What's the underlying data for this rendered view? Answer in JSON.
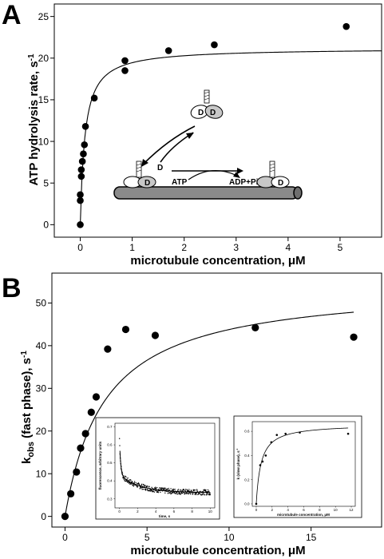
{
  "panels": {
    "A": "A",
    "B": "B"
  },
  "chart_data": [
    {
      "type": "scatter",
      "panel": "A",
      "xlabel": "microtubule concentration, μM",
      "ylabel": "ATP hydrolysis rate, s",
      "ylabel_sup": "-1",
      "xlim": [
        -0.5,
        5.8
      ],
      "ylim": [
        -1.5,
        26.5
      ],
      "xticks": [
        0,
        1,
        2,
        3,
        4,
        5
      ],
      "yticks": [
        0,
        5,
        10,
        15,
        20,
        25
      ],
      "points": [
        {
          "x": 0.0,
          "y": 0.0
        },
        {
          "x": 0.0,
          "y": 2.9
        },
        {
          "x": 0.0,
          "y": 3.6
        },
        {
          "x": 0.02,
          "y": 5.8
        },
        {
          "x": 0.02,
          "y": 6.6
        },
        {
          "x": 0.04,
          "y": 7.6
        },
        {
          "x": 0.06,
          "y": 8.5
        },
        {
          "x": 0.08,
          "y": 9.6
        },
        {
          "x": 0.1,
          "y": 11.8
        },
        {
          "x": 0.27,
          "y": 15.2
        },
        {
          "x": 0.86,
          "y": 18.5
        },
        {
          "x": 0.86,
          "y": 19.7
        },
        {
          "x": 1.7,
          "y": 20.9
        },
        {
          "x": 2.58,
          "y": 21.6
        },
        {
          "x": 5.12,
          "y": 23.8
        }
      ],
      "fit": {
        "model": "hyperbola",
        "vmax": 21.2,
        "k": 0.09
      },
      "diagram_labels": {
        "d": "D",
        "atp": "ATP",
        "products": "ADP+Pi"
      }
    },
    {
      "type": "scatter",
      "panel": "B",
      "xlabel": "microtubule concentration, μM",
      "ylabel_main": "k",
      "ylabel_sub": "obs",
      "ylabel_rest": " (fast phase), s",
      "ylabel_sup": "-1",
      "xlim": [
        -0.8,
        19.3
      ],
      "ylim": [
        -2.5,
        57
      ],
      "xticks": [
        0,
        5,
        10,
        15
      ],
      "yticks": [
        0,
        10,
        20,
        30,
        40,
        50
      ],
      "points": [
        {
          "x": 0.0,
          "y": 0.0
        },
        {
          "x": 0.35,
          "y": 5.3
        },
        {
          "x": 0.7,
          "y": 10.4
        },
        {
          "x": 0.95,
          "y": 16.0
        },
        {
          "x": 1.25,
          "y": 19.4
        },
        {
          "x": 1.6,
          "y": 24.4
        },
        {
          "x": 1.9,
          "y": 28.0
        },
        {
          "x": 2.6,
          "y": 39.2
        },
        {
          "x": 3.7,
          "y": 43.8
        },
        {
          "x": 5.5,
          "y": 42.4
        },
        {
          "x": 11.6,
          "y": 44.2
        },
        {
          "x": 17.6,
          "y": 42.0
        }
      ],
      "fit": {
        "model": "hyperbola",
        "vmax": 54.5,
        "k": 2.45
      },
      "insets": [
        {
          "type": "line",
          "xlabel": "time, s",
          "ylabel": "fluorescence, arbitrary units",
          "xlim": [
            -0.5,
            10.5
          ],
          "ylim": [
            0.25,
            0.72
          ],
          "xticks": [
            0,
            2,
            4,
            6,
            8,
            10
          ],
          "yticks": [
            0.3,
            0.4,
            0.5,
            0.6,
            0.7
          ],
          "curve": {
            "model": "double-exponential",
            "a1": 0.2,
            "k1": 8,
            "a2": 0.1,
            "k2": 0.45,
            "c": 0.335
          }
        },
        {
          "type": "scatter",
          "xlabel": "microtubule concentration, μM",
          "ylabel": "k (slow phase), s",
          "ylabel_sup": "-1",
          "xlim": [
            -0.5,
            12.5
          ],
          "ylim": [
            -0.02,
            0.68
          ],
          "xticks": [
            0,
            2,
            4,
            6,
            8,
            10,
            12
          ],
          "yticks": [
            0.0,
            0.2,
            0.4,
            0.6
          ],
          "points": [
            {
              "x": 0.0,
              "y": 0.0
            },
            {
              "x": 0.5,
              "y": 0.32
            },
            {
              "x": 0.8,
              "y": 0.35
            },
            {
              "x": 1.2,
              "y": 0.4
            },
            {
              "x": 1.9,
              "y": 0.51
            },
            {
              "x": 2.6,
              "y": 0.57
            },
            {
              "x": 3.7,
              "y": 0.58
            },
            {
              "x": 5.5,
              "y": 0.59
            },
            {
              "x": 11.6,
              "y": 0.58
            }
          ],
          "fit": {
            "model": "hyperbola",
            "vmax": 0.66,
            "k": 0.6
          }
        }
      ]
    }
  ]
}
